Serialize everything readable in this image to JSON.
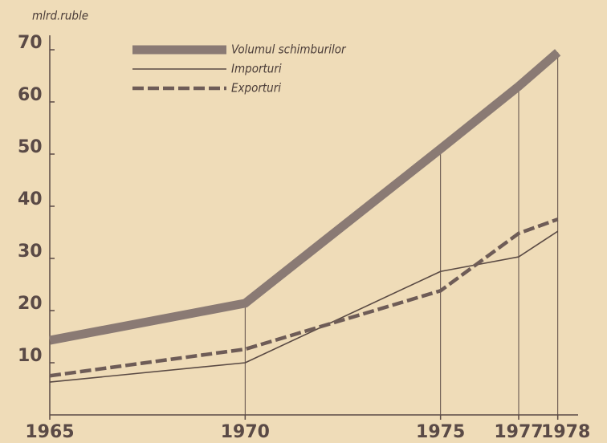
{
  "chart_data": {
    "type": "line",
    "y_label": "mlrd.ruble",
    "x": [
      1965,
      1970,
      1975,
      1977,
      1978
    ],
    "xlim": [
      1965,
      1978.5
    ],
    "xticks": [
      1965,
      1970,
      1975,
      1977,
      1978
    ],
    "ylim": [
      0,
      72
    ],
    "yticks": [
      10,
      20,
      30,
      40,
      50,
      60,
      70
    ],
    "series": [
      {
        "name": "Volumul schimburilor",
        "color": "#8a7a74",
        "style": "thick",
        "values": [
          14.3,
          21.4,
          51,
          63,
          69.5
        ]
      },
      {
        "name": "Importuri",
        "color": "#5a4a44",
        "style": "thin",
        "values": [
          6.3,
          10,
          27.5,
          30.3,
          35.2
        ]
      },
      {
        "name": "Exporturi",
        "color": "#6e5c57",
        "style": "dashed",
        "values": [
          7.5,
          12.6,
          23.8,
          34.8,
          37.5
        ]
      }
    ]
  }
}
